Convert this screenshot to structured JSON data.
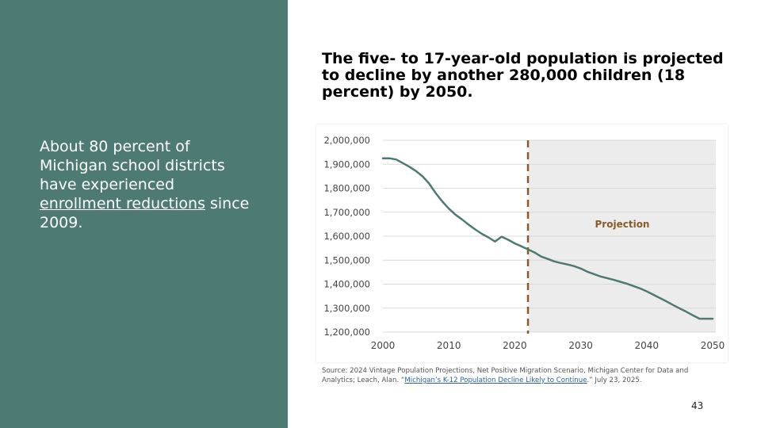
{
  "left_panel": {
    "text_before": "About 80 percent of Michigan school districts have experienced ",
    "link_text": "enrollment reductions",
    "text_after": " since 2009.",
    "background": "#4d7a72"
  },
  "headline": "The five- to 17-year-old population is projected to decline by another 280,000 children (18 percent) by 2050.",
  "source": {
    "text_before": "Source: 2024 Vintage Population Projections, Net Positive Migration Scenario, Michigan Center for Data and Analytics; Leach, Alan. “",
    "link_text": "Michigan’s K-12 Population Decline Likely to Continue",
    "text_after": ".” July 23, 2025."
  },
  "page_number": "43",
  "chart_data": {
    "type": "line",
    "x": [
      2000,
      2001,
      2002,
      2003,
      2004,
      2005,
      2006,
      2007,
      2008,
      2009,
      2010,
      2011,
      2012,
      2013,
      2014,
      2015,
      2016,
      2017,
      2018,
      2019,
      2020,
      2021,
      2022,
      2023,
      2024,
      2025,
      2026,
      2027,
      2028,
      2029,
      2030,
      2031,
      2032,
      2033,
      2034,
      2035,
      2036,
      2037,
      2038,
      2039,
      2040,
      2041,
      2042,
      2043,
      2044,
      2045,
      2046,
      2047,
      2048,
      2049,
      2050
    ],
    "values": [
      1925000,
      1925000,
      1920000,
      1905000,
      1890000,
      1872000,
      1850000,
      1820000,
      1780000,
      1745000,
      1715000,
      1690000,
      1670000,
      1648000,
      1628000,
      1610000,
      1595000,
      1578000,
      1598000,
      1585000,
      1570000,
      1558000,
      1545000,
      1532000,
      1515000,
      1505000,
      1495000,
      1488000,
      1482000,
      1475000,
      1465000,
      1452000,
      1442000,
      1432000,
      1425000,
      1418000,
      1410000,
      1402000,
      1392000,
      1382000,
      1370000,
      1356000,
      1342000,
      1328000,
      1313000,
      1299000,
      1285000,
      1270000,
      1256000,
      1256000,
      1256000
    ],
    "xticks": [
      2000,
      2010,
      2020,
      2030,
      2040,
      2050
    ],
    "yticks": [
      1200000,
      1300000,
      1400000,
      1500000,
      1600000,
      1700000,
      1800000,
      1900000,
      2000000
    ],
    "ytick_labels": [
      "1,200,000",
      "1,300,000",
      "1,400,000",
      "1,500,000",
      "1,600,000",
      "1,700,000",
      "1,800,000",
      "1,900,000",
      "2,000,000"
    ],
    "xlim": [
      2000,
      2050
    ],
    "ylim": [
      1200000,
      2000000
    ],
    "projection_start": 2022,
    "projection_label": "Projection",
    "grid": true,
    "line_color": "#4d7a72",
    "projection_color": "#8b5a2b",
    "projection_shade": "#ececec"
  }
}
